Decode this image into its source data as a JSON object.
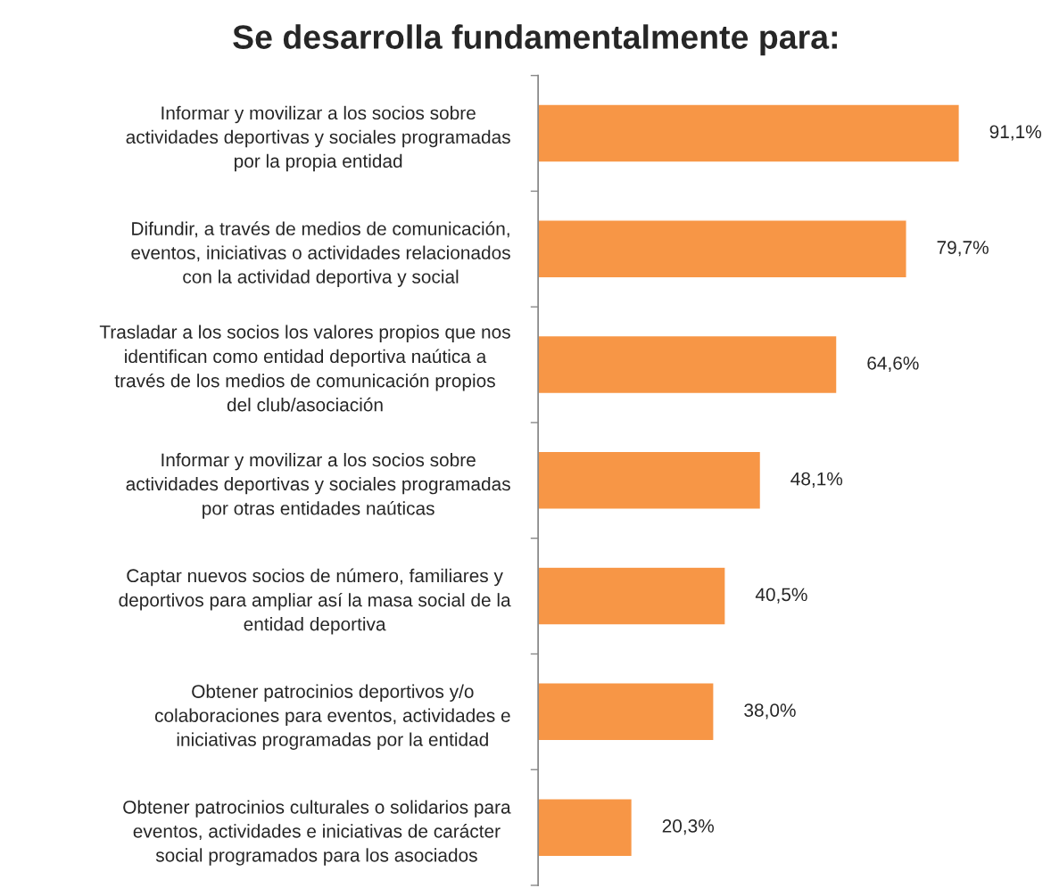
{
  "chart_data": {
    "type": "bar",
    "orientation": "horizontal",
    "title": "Se desarrolla fundamentalmente para:",
    "categories": [
      "Informar y movilizar a los socios sobre\nactividades deportivas y sociales programadas\npor la propia entidad",
      "Difundir, a través de medios de comunicación,\neventos, iniciativas o actividades relacionados\ncon la actividad deportiva y social",
      "Trasladar a los socios los valores propios que nos\nidentifican como entidad deportiva naútica a\ntravés de los medios de comunicación propios\ndel club/asociación",
      "Informar y movilizar a los socios sobre\nactividades deportivas y sociales programadas\npor otras entidades naúticas",
      "Captar nuevos socios de número, familiares y\ndeportivos para ampliar así la masa social de la\nentidad deportiva",
      "Obtener patrocinios deportivos y/o\ncolaboraciones para eventos, actividades e\niniciativas programadas por la entidad",
      "Obtener patrocinios culturales o solidarios para\neventos, actividades e iniciativas de carácter\nsocial programados para los asociados"
    ],
    "values": [
      91.1,
      79.7,
      64.6,
      48.1,
      40.5,
      38.0,
      20.3
    ],
    "value_labels": [
      "91,1%",
      "79,7%",
      "64,6%",
      "48,1%",
      "40,5%",
      "38,0%",
      "20,3%"
    ],
    "color": "#f79646",
    "grid": false
  }
}
